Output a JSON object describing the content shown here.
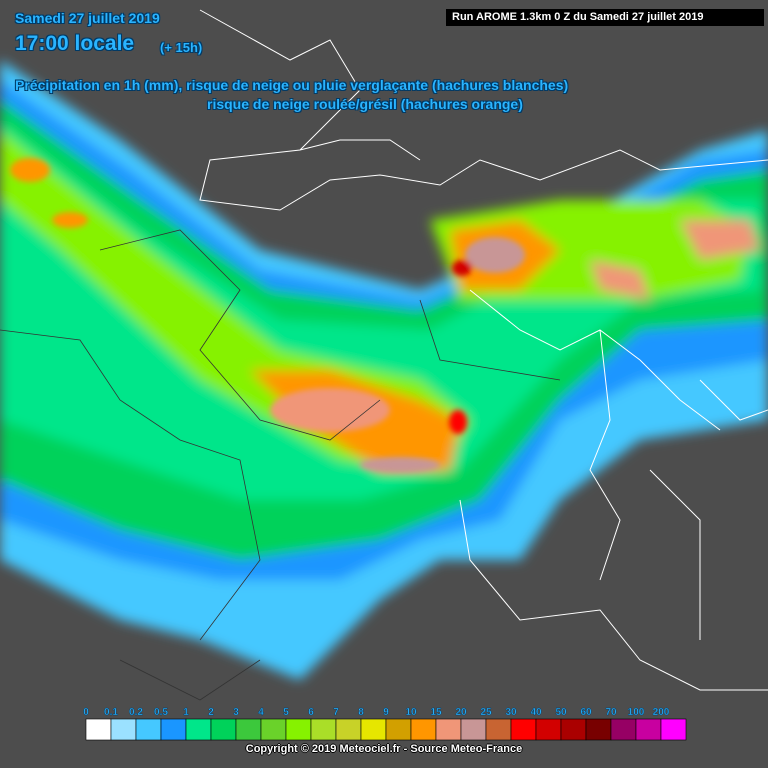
{
  "header": {
    "date": "Samedi 27 juillet 2019",
    "time": "17:00 locale",
    "offset": "(+ 15h)",
    "line1": "Précipitation en 1h (mm), risque de neige ou pluie verglaçante (hachures blanches)",
    "line2": "risque de neige roulée/grésil (hachures orange)",
    "run": "Run AROME 1.3km 0 Z du Samedi 27 juillet 2019"
  },
  "legend": [
    {
      "label": "0",
      "color": "#ffffff"
    },
    {
      "label": "0.1",
      "color": "#9be1ff"
    },
    {
      "label": "0.2",
      "color": "#45c8ff"
    },
    {
      "label": "0.5",
      "color": "#1a96ff"
    },
    {
      "label": "1",
      "color": "#00e68a"
    },
    {
      "label": "2",
      "color": "#00d25a"
    },
    {
      "label": "3",
      "color": "#3cc83c"
    },
    {
      "label": "4",
      "color": "#6ad22a"
    },
    {
      "label": "5",
      "color": "#86f200"
    },
    {
      "label": "6",
      "color": "#aade28"
    },
    {
      "label": "7",
      "color": "#c8d228"
    },
    {
      "label": "8",
      "color": "#e6e600"
    },
    {
      "label": "9",
      "color": "#d2a000"
    },
    {
      "label": "10",
      "color": "#ff9600"
    },
    {
      "label": "15",
      "color": "#f09678"
    },
    {
      "label": "20",
      "color": "#c89696"
    },
    {
      "label": "25",
      "color": "#c86432"
    },
    {
      "label": "30",
      "color": "#ff0000"
    },
    {
      "label": "40",
      "color": "#d20000"
    },
    {
      "label": "50",
      "color": "#aa0000"
    },
    {
      "label": "60",
      "color": "#780000"
    },
    {
      "label": "70",
      "color": "#960064"
    },
    {
      "label": "100",
      "color": "#c800a0"
    },
    {
      "label": "200",
      "color": "#ff00ff"
    }
  ],
  "copyright": "Copyright © 2019 Meteociel.fr - Source Meteo-France"
}
